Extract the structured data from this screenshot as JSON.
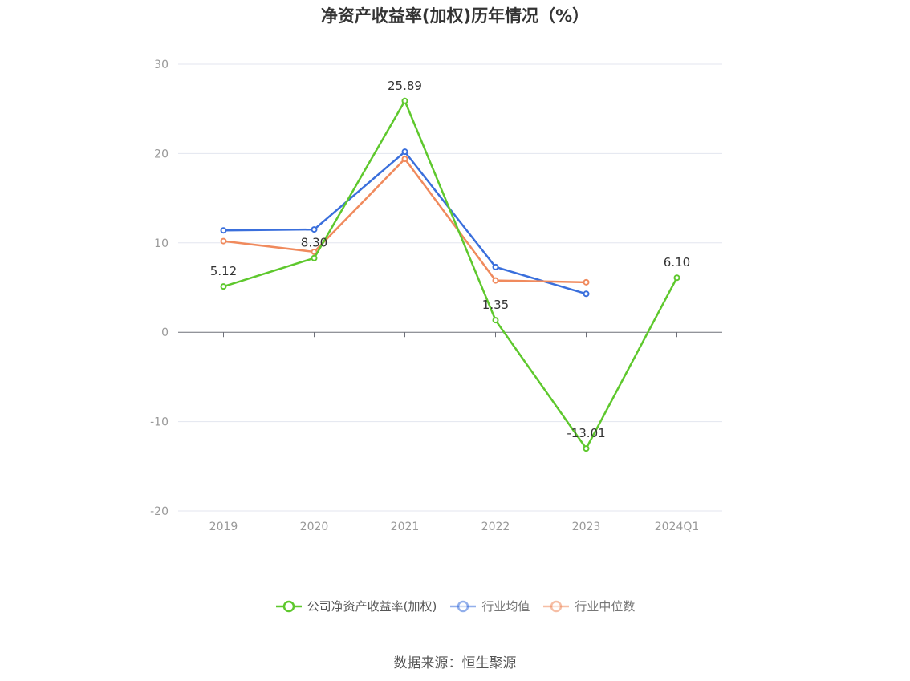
{
  "chart_data": {
    "type": "line",
    "title": "净资产收益率(加权)历年情况（%）",
    "categories": [
      "2019",
      "2020",
      "2021",
      "2022",
      "2023",
      "2024Q1"
    ],
    "ylim": [
      -20,
      30
    ],
    "yticks": [
      30,
      20,
      10,
      0,
      -10,
      -20
    ],
    "grid": true,
    "legend_position": "bottom",
    "series": [
      {
        "name": "公司净资产收益率(加权)",
        "color": "#5ec82d",
        "values": [
          5.12,
          8.3,
          25.89,
          1.35,
          -13.01,
          6.1
        ],
        "labels": [
          "5.12",
          "8.30",
          "25.89",
          "1.35",
          "-13.01",
          "6.10"
        ]
      },
      {
        "name": "行业均值",
        "color": "#3a6fdc",
        "values": [
          11.4,
          11.5,
          20.2,
          7.3,
          4.3,
          null
        ]
      },
      {
        "name": "行业中位数",
        "color": "#f08a5d",
        "values": [
          10.2,
          9.0,
          19.4,
          5.8,
          5.6,
          null
        ]
      }
    ]
  },
  "source": "数据来源：恒生聚源"
}
